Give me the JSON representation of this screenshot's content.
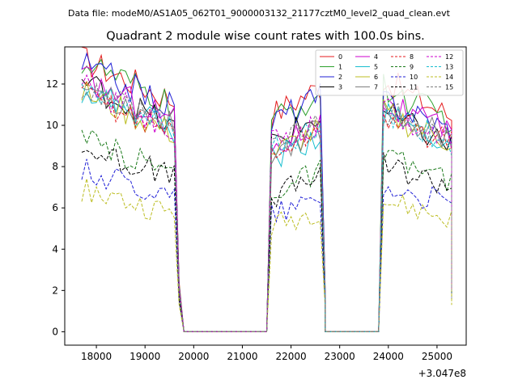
{
  "header": {
    "data_file": "Data file: modeM0/AS1A05_062T01_9000003132_21177cztM0_level2_quad_clean.evt"
  },
  "chart_data": {
    "type": "line",
    "title": "Quadrant 2 module wise count rates with 100.0s bins.",
    "xlabel": "",
    "ylabel": "",
    "x_offset_label": "+3.047e8",
    "xlim": [
      17350,
      25600
    ],
    "ylim": [
      -0.65,
      13.8
    ],
    "xticks": [
      18000,
      19000,
      20000,
      21000,
      22000,
      23000,
      24000,
      25000
    ],
    "yticks": [
      0,
      2,
      4,
      6,
      8,
      10,
      12
    ],
    "legend_position": "top-right",
    "segments": [
      {
        "start": 17700,
        "end": 19600
      },
      {
        "start": 21600,
        "end": 22600
      },
      {
        "start": 23900,
        "end": 25250
      }
    ],
    "gaps": [
      {
        "start": 19800,
        "end": 21500
      },
      {
        "start": 22700,
        "end": 23800
      }
    ],
    "series": [
      {
        "name": "0",
        "color": "#e41a1c",
        "dash": "solid",
        "seg_levels": [
          12.2,
          11.2,
          11.3
        ],
        "seg_trends": [
          -2.0,
          1.4,
          -1.8
        ],
        "edge_value": 2.4
      },
      {
        "name": "1",
        "color": "#2ca02c",
        "dash": "solid",
        "seg_levels": [
          12.0,
          10.8,
          11.0
        ],
        "seg_trends": [
          -2.2,
          1.4,
          -1.6
        ],
        "edge_value": 2.3
      },
      {
        "name": "2",
        "color": "#1f1fd6",
        "dash": "solid",
        "seg_levels": [
          11.9,
          10.8,
          10.5
        ],
        "seg_trends": [
          -2.1,
          1.2,
          -1.5
        ],
        "edge_value": 2.2
      },
      {
        "name": "3",
        "color": "#000000",
        "dash": "solid",
        "seg_levels": [
          11.0,
          9.8,
          9.8
        ],
        "seg_trends": [
          -2.3,
          1.2,
          -1.6
        ],
        "edge_value": 2.1
      },
      {
        "name": "4",
        "color": "#cc00cc",
        "dash": "solid",
        "seg_levels": [
          11.3,
          9.5,
          10.3
        ],
        "seg_trends": [
          -2.0,
          1.2,
          -1.5
        ],
        "edge_value": 2.1
      },
      {
        "name": "5",
        "color": "#17becf",
        "dash": "solid",
        "seg_levels": [
          10.8,
          9.0,
          9.8
        ],
        "seg_trends": [
          -2.0,
          1.2,
          -1.4
        ],
        "edge_value": 2.0
      },
      {
        "name": "6",
        "color": "#bcbd22",
        "dash": "solid",
        "seg_levels": [
          10.6,
          9.2,
          9.9
        ],
        "seg_trends": [
          -2.0,
          1.2,
          -1.4
        ],
        "edge_value": 2.0
      },
      {
        "name": "7",
        "color": "#7f7f7f",
        "dash": "solid",
        "seg_levels": [
          10.9,
          9.3,
          10.1
        ],
        "seg_trends": [
          -2.0,
          1.2,
          -1.4
        ],
        "edge_value": 2.0
      },
      {
        "name": "8",
        "color": "#e41a1c",
        "dash": "dashed",
        "seg_levels": [
          10.6,
          9.2,
          9.8
        ],
        "seg_trends": [
          -1.9,
          1.1,
          -1.4
        ],
        "edge_value": 2.0
      },
      {
        "name": "9",
        "color": "#1a7a1a",
        "dash": "dashed",
        "seg_levels": [
          8.5,
          7.3,
          7.9
        ],
        "seg_trends": [
          -1.5,
          1.0,
          -1.1
        ],
        "edge_value": 1.7
      },
      {
        "name": "10",
        "color": "#1f1fd6",
        "dash": "dashed",
        "seg_levels": [
          7.2,
          6.1,
          6.6
        ],
        "seg_trends": [
          -1.3,
          0.7,
          -0.9
        ],
        "edge_value": 1.5
      },
      {
        "name": "11",
        "color": "#000000",
        "dash": "dashed",
        "seg_levels": [
          8.2,
          7.1,
          7.6
        ],
        "seg_trends": [
          -1.4,
          1.1,
          -1.0
        ],
        "edge_value": 1.6
      },
      {
        "name": "12",
        "color": "#cc00cc",
        "dash": "dashed",
        "seg_levels": [
          10.9,
          9.6,
          10.0
        ],
        "seg_trends": [
          -1.9,
          1.1,
          -1.5
        ],
        "edge_value": 2.1
      },
      {
        "name": "13",
        "color": "#17becf",
        "dash": "dashed",
        "seg_levels": [
          10.7,
          9.4,
          9.9
        ],
        "seg_trends": [
          -1.8,
          1.1,
          -1.4
        ],
        "edge_value": 2.0
      },
      {
        "name": "14",
        "color": "#bcbd22",
        "dash": "dashed",
        "seg_levels": [
          6.3,
          5.5,
          5.9
        ],
        "seg_trends": [
          -1.2,
          0.8,
          -0.9
        ],
        "edge_value": 1.3
      },
      {
        "name": "15",
        "color": "#7f7f7f",
        "dash": "dashed",
        "seg_levels": [
          10.8,
          9.5,
          10.0
        ],
        "seg_trends": [
          -1.8,
          1.0,
          -1.4
        ],
        "edge_value": 2.0
      }
    ]
  }
}
